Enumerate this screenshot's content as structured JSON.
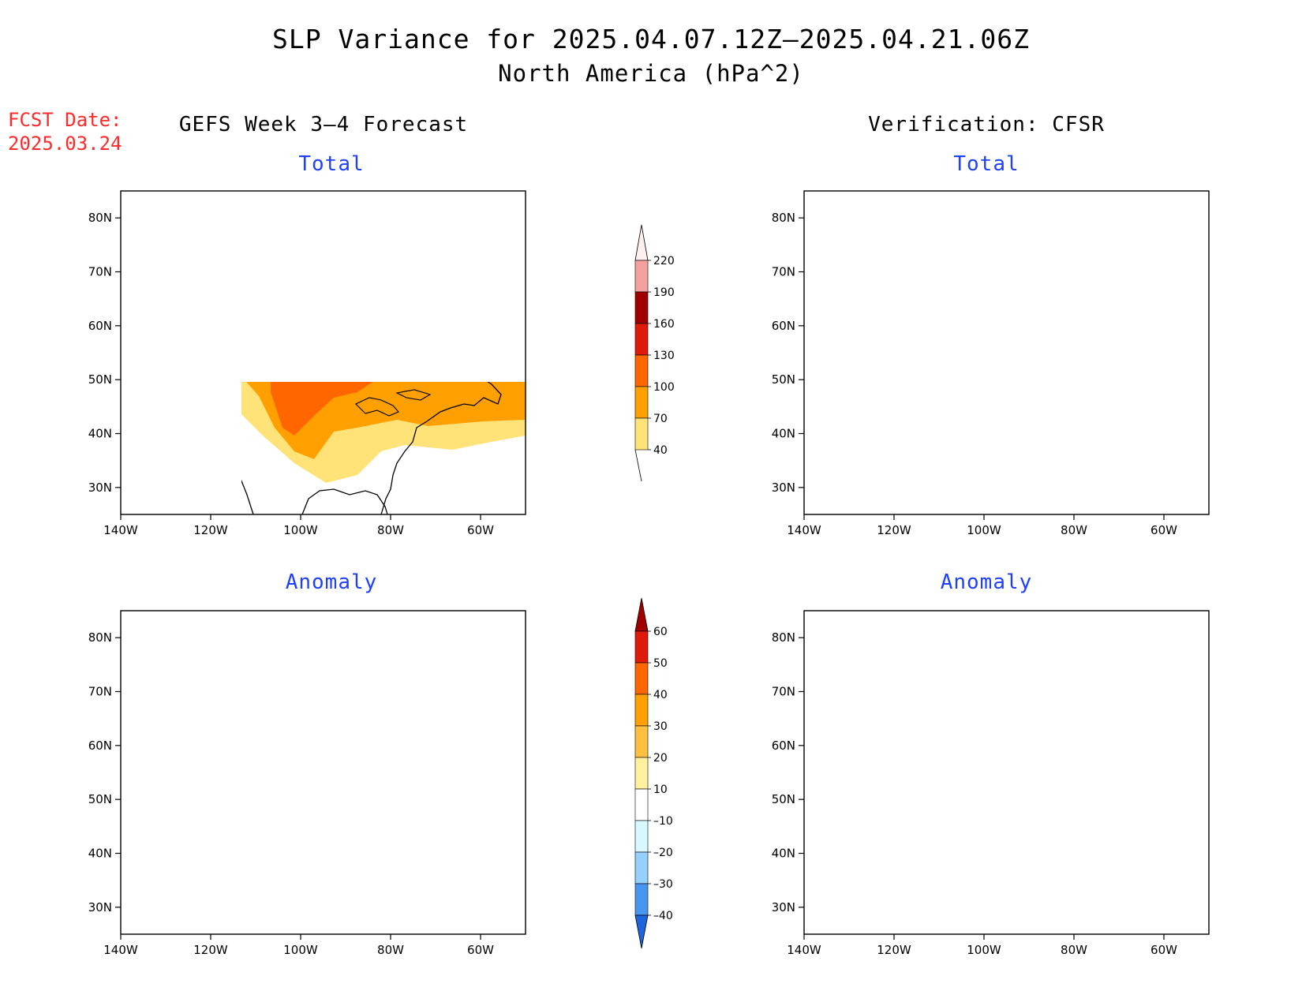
{
  "title": {
    "line1": "SLP Variance for 2025.04.07.12Z–2025.04.21.06Z",
    "line2": "North America (hPa^2)"
  },
  "fcst_date": {
    "label": "FCST Date:",
    "value": "2025.03.24"
  },
  "columns": {
    "left": "GEFS Week 3–4 Forecast",
    "right": "Verification: CFSR"
  },
  "panels": {
    "total": "Total",
    "anomaly": "Anomaly"
  },
  "axes": {
    "lat_labels": [
      "80N",
      "70N",
      "60N",
      "50N",
      "40N",
      "30N"
    ],
    "lon_labels": [
      "140W",
      "120W",
      "100W",
      "80W",
      "60W"
    ],
    "lat_range": [
      25,
      85
    ],
    "lon_range": [
      -140,
      -50
    ]
  },
  "total_colorbar": {
    "levels": [
      "220",
      "190",
      "160",
      "130",
      "100",
      "70",
      "40"
    ],
    "colors": [
      "#fff0f0",
      "#f4a0a0",
      "#a00000",
      "#e01a0a",
      "#ff6600",
      "#ffa000",
      "#ffe278"
    ]
  },
  "anomaly_colorbar": {
    "levels": [
      "60",
      "50",
      "40",
      "30",
      "20",
      "10",
      "–10",
      "–20",
      "–30",
      "–40"
    ],
    "colors": [
      "#a00000",
      "#e01a0a",
      "#ff6600",
      "#ffa000",
      "#ffc040",
      "#fff0a0",
      "#ffffff",
      "#d8f8ff",
      "#96d0ff",
      "#4896f0",
      "#1e64dc"
    ]
  }
}
